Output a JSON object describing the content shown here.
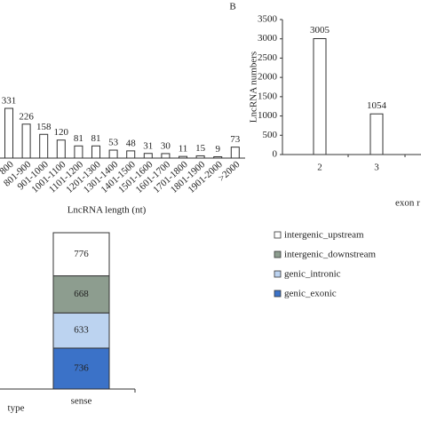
{
  "chart_data": [
    {
      "type": "bar",
      "xlabel": "LncRNA length (nt)",
      "categories": [
        "800",
        "801-900",
        "901-1000",
        "1001-1100",
        "1101-1200",
        "1201-1300",
        "1301-1400",
        "1401-1500",
        "1501-1600",
        "1601-1700",
        "1701-1800",
        "1801-1900",
        "1901-2000",
        ">2000"
      ],
      "values": [
        331,
        226,
        158,
        120,
        81,
        81,
        53,
        48,
        31,
        30,
        11,
        15,
        9,
        73
      ],
      "color": "#ffffff"
    },
    {
      "type": "bar",
      "title": "B",
      "ylabel": "LncRNA numbers",
      "xlabel": "exon r",
      "categories": [
        "2",
        "3"
      ],
      "values": [
        3005,
        1054
      ],
      "color": "#ffffff",
      "ylim": [
        0,
        3500
      ],
      "yticks": [
        0,
        500,
        1000,
        1500,
        2000,
        2500,
        3000,
        3500
      ]
    },
    {
      "type": "stacked_bar",
      "xlabel": "type",
      "categories": [
        "sense"
      ],
      "series": [
        {
          "name": "genic_exonic",
          "color": "#3b72c8",
          "values": [
            736
          ]
        },
        {
          "name": "genic_intronic",
          "color": "#bcd3f0",
          "values": [
            633
          ]
        },
        {
          "name": "intergenic_downstream",
          "color": "#8d9d8f",
          "values": [
            668
          ]
        },
        {
          "name": "intergenic_upstream",
          "color": "#ffffff",
          "values": [
            776
          ]
        }
      ],
      "legend": "right"
    }
  ]
}
